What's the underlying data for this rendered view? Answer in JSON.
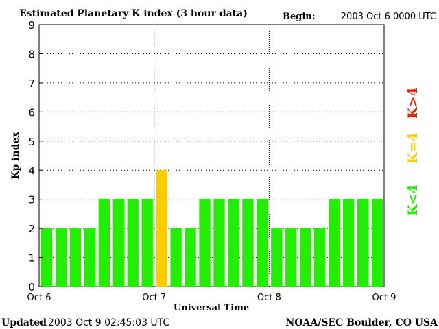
{
  "header": {
    "title": "Estimated Planetary K index (3 hour data)",
    "begin_label": "Begin:",
    "begin_value": "2003 Oct 6 0000 UTC"
  },
  "footer": {
    "updated_label": "Updated",
    "updated_value": "2003 Oct  9 02:45:03 UTC",
    "source": "NOAA/SEC Boulder, CO USA"
  },
  "legend": {
    "items": [
      {
        "label": "K<4",
        "color": "#22ee00"
      },
      {
        "label": "K=4",
        "color": "#ffcc00"
      },
      {
        "label": "K>4",
        "color": "#ee2200"
      }
    ]
  },
  "chart_data": {
    "type": "bar",
    "title": "Estimated Planetary K index (3 hour data)",
    "xlabel": "Universal Time",
    "ylabel": "Kp index",
    "ylim": [
      0,
      9
    ],
    "yticks": [
      "0",
      "1",
      "2",
      "3",
      "4",
      "5",
      "6",
      "7",
      "8",
      "9"
    ],
    "xtick_labels": [
      "Oct 6",
      "Oct 7",
      "Oct 8",
      "Oct 9"
    ],
    "day_separators": [
      "Oct 7",
      "Oct 8"
    ],
    "interval": "3 hour",
    "values": [
      2,
      2,
      2,
      2,
      3,
      3,
      3,
      3,
      4,
      2,
      2,
      3,
      3,
      3,
      3,
      3,
      2,
      2,
      2,
      2,
      3,
      3,
      3,
      3
    ],
    "colors": {
      "below4": "#22ee00",
      "equal4": "#ffcc00",
      "above4": "#ee2200"
    }
  }
}
